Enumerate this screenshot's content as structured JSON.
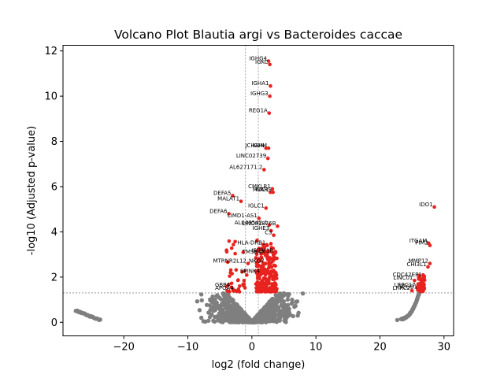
{
  "colors": {
    "significant": "#e8231f",
    "nonsignificant": "#7f7f7f",
    "threshold_line": "#888888"
  },
  "chart_data": {
    "type": "scatter",
    "title": "Volcano Plot Blautia argi vs Bacteroides caccae",
    "xlabel": "log2 (fold change)",
    "ylabel": "-log10 (Adjusted p-value)",
    "xlim": [
      -29.5,
      31.5
    ],
    "ylim": [
      -0.6,
      12.25
    ],
    "xticks": [
      -20,
      -10,
      0,
      10,
      20,
      30
    ],
    "yticks": [
      0,
      2,
      4,
      6,
      8,
      10,
      12
    ],
    "grid": false,
    "thresholds": {
      "fc_low": -1,
      "fc_high": 1,
      "p": 1.3
    },
    "significant_labeled": [
      {
        "label": "IGHG4",
        "x": 2.6,
        "y": 11.55
      },
      {
        "label": "IGKC",
        "x": 2.8,
        "y": 11.4
      },
      {
        "label": "IGHA1",
        "x": 2.9,
        "y": 10.45
      },
      {
        "label": "IGHG3",
        "x": 2.8,
        "y": 10.0
      },
      {
        "label": "REG1A",
        "x": 2.7,
        "y": 9.25
      },
      {
        "label": "JCHAIN",
        "x": 2.2,
        "y": 7.7
      },
      {
        "label": "IGHM",
        "x": 2.6,
        "y": 7.7
      },
      {
        "label": "LINC02739",
        "x": 2.5,
        "y": 7.25
      },
      {
        "label": "AL627171.2",
        "x": 1.9,
        "y": 6.75
      },
      {
        "label": "CMKLR1",
        "x": 3.2,
        "y": 5.9
      },
      {
        "label": "MUC1",
        "x": 2.9,
        "y": 5.75
      },
      {
        "label": "WARS",
        "x": 3.3,
        "y": 5.75
      },
      {
        "label": "DEFA5",
        "x": -3.0,
        "y": 5.6
      },
      {
        "label": "MALAT1",
        "x": -1.7,
        "y": 5.35
      },
      {
        "label": "IGLC1",
        "x": 2.2,
        "y": 5.05
      },
      {
        "label": "DEFA6",
        "x": -3.6,
        "y": 4.8
      },
      {
        "label": "LIMD1-AS1",
        "x": 1.1,
        "y": 4.6
      },
      {
        "label": "AL049542.1",
        "x": 2.7,
        "y": 4.3
      },
      {
        "label": "LINC01876B",
        "x": 4.0,
        "y": 4.25
      },
      {
        "label": "IGHE3",
        "x": 3.0,
        "y": 4.05
      },
      {
        "label": "IDO1",
        "x": 28.5,
        "y": 5.1
      },
      {
        "label": "PIM2",
        "x": 27.8,
        "y": 3.4
      },
      {
        "label": "ITGAM",
        "x": 27.6,
        "y": 3.5
      },
      {
        "label": "MMP12",
        "x": 27.8,
        "y": 2.6
      },
      {
        "label": "CHI3L1",
        "x": 27.5,
        "y": 2.45
      },
      {
        "label": "CDC42EP1",
        "x": 26.8,
        "y": 2.0
      },
      {
        "label": "MTRNR2L12",
        "x": -0.6,
        "y": 2.6
      },
      {
        "label": "GBP4",
        "x": -3.2,
        "y": 1.55
      },
      {
        "label": "APOA4",
        "x": -2.6,
        "y": 1.4
      },
      {
        "label": "TMSB4X",
        "x": 2.3,
        "y": 3.0
      },
      {
        "label": "IFITM1R",
        "x": 3.6,
        "y": 3.05
      },
      {
        "label": "HLA-DRB1",
        "x": 2.4,
        "y": 3.4
      }
    ],
    "annotation_cluster_center": [
      {
        "label": "C3",
        "x": 3.4,
        "y": 3.85
      },
      {
        "label": "NKG7",
        "x": 2.2,
        "y": 2.6
      },
      {
        "label": "SPINK4",
        "x": 1.5,
        "y": 2.15
      }
    ],
    "annotation_cluster_right": [
      {
        "label": "LINC01",
        "x": 25.4,
        "y": 1.85
      },
      {
        "label": "LRRC17",
        "x": 25.8,
        "y": 1.55
      },
      {
        "label": "LRRC2",
        "x": 25.0,
        "y": 1.4
      },
      {
        "label": "SCGB1",
        "x": 26.1,
        "y": 1.45
      }
    ]
  }
}
